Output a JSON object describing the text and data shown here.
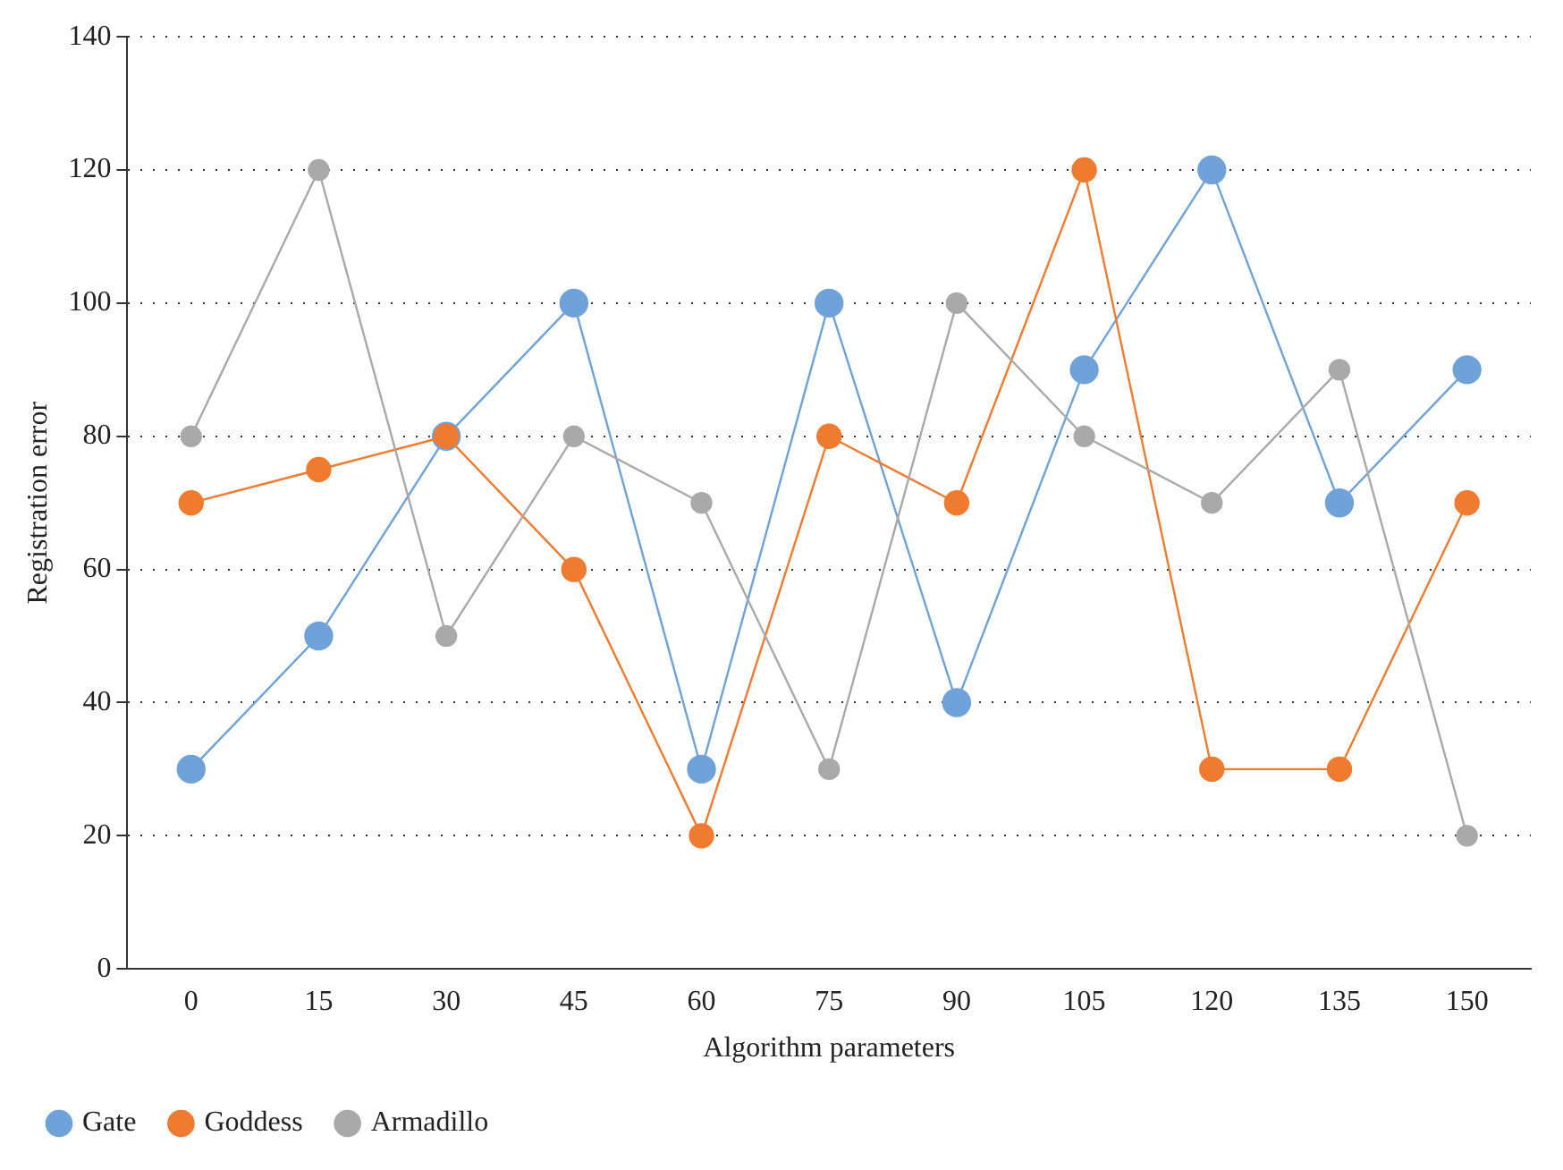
{
  "chart_data": {
    "type": "line",
    "xlabel": "Algorithm parameters",
    "ylabel": "Registration error",
    "categories": [
      "0",
      "15",
      "30",
      "45",
      "60",
      "75",
      "90",
      "105",
      "120",
      "135",
      "150"
    ],
    "series": [
      {
        "name": "Gate",
        "color": "#6fa2d8",
        "values": [
          30,
          50,
          80,
          100,
          30,
          100,
          40,
          90,
          120,
          70,
          90
        ]
      },
      {
        "name": "Goddess",
        "color": "#ee7b30",
        "values": [
          70,
          75,
          80,
          60,
          20,
          80,
          70,
          120,
          30,
          30,
          70
        ]
      },
      {
        "name": "Armadillo",
        "color": "#a9a9a9",
        "values": [
          80,
          120,
          50,
          80,
          70,
          30,
          100,
          80,
          70,
          90,
          20
        ]
      }
    ],
    "ylim": [
      0,
      140
    ],
    "yticks": [
      0,
      20,
      40,
      60,
      80,
      100,
      120,
      140
    ],
    "grid": "y",
    "legend": "bottom left",
    "marker": "circle",
    "line_style": "solid"
  }
}
